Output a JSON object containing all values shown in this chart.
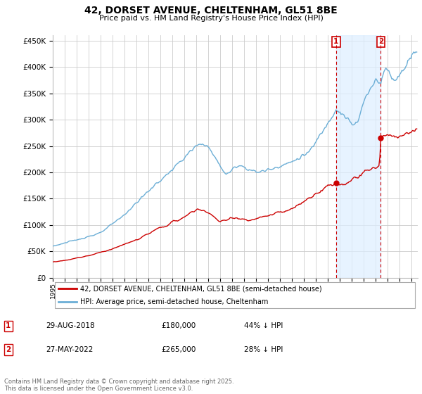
{
  "title": "42, DORSET AVENUE, CHELTENHAM, GL51 8BE",
  "subtitle": "Price paid vs. HM Land Registry's House Price Index (HPI)",
  "ylim": [
    0,
    460000
  ],
  "yticks": [
    0,
    50000,
    100000,
    150000,
    200000,
    250000,
    300000,
    350000,
    400000,
    450000
  ],
  "xlim_start": 1995.0,
  "xlim_end": 2025.5,
  "sale1_year": 2018.66,
  "sale1_price": 180000,
  "sale1_date": "29-AUG-2018",
  "sale1_pct": "44% ↓ HPI",
  "sale2_year": 2022.41,
  "sale2_price": 265000,
  "sale2_date": "27-MAY-2022",
  "sale2_pct": "28% ↓ HPI",
  "line_color_hpi": "#6baed6",
  "line_color_property": "#cc0000",
  "shade_color": "#ddeeff",
  "background_color": "#ffffff",
  "grid_color": "#cccccc",
  "legend_label_property": "42, DORSET AVENUE, CHELTENHAM, GL51 8BE (semi-detached house)",
  "legend_label_hpi": "HPI: Average price, semi-detached house, Cheltenham",
  "footer": "Contains HM Land Registry data © Crown copyright and database right 2025.\nThis data is licensed under the Open Government Licence v3.0."
}
